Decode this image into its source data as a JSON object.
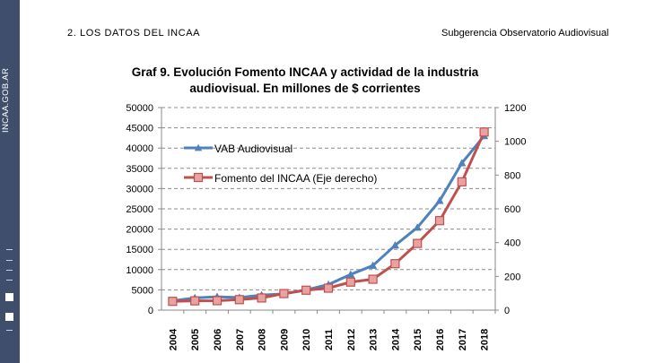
{
  "sidebar": {
    "brand": "INCAA.GOB.AR"
  },
  "header": {
    "section": "2. LOS DATOS DEL INCAA",
    "department": "Subgerencia Observatorio Audiovisual"
  },
  "colors": {
    "sidebar": "#3f4f6b",
    "vab": "#4f81bd",
    "fomento": "#c0504d"
  },
  "chart_data": {
    "type": "line",
    "title_lines": [
      "Graf 9. Evolución Fomento INCAA y actividad de la industria",
      "audiovisual. En millones de $ corrientes"
    ],
    "xlabel": "",
    "ylabel": "",
    "x": [
      "2004",
      "2005",
      "2006",
      "2007",
      "2008",
      "2009",
      "2010",
      "2011",
      "2012",
      "2013",
      "2014",
      "2015",
      "2016",
      "2017",
      "2018"
    ],
    "y_left": {
      "range": [
        0,
        50000
      ],
      "ticks": [
        "0",
        "5000",
        "10000",
        "15000",
        "20000",
        "25000",
        "30000",
        "35000",
        "40000",
        "45000",
        "50000"
      ]
    },
    "y_right": {
      "range": [
        0,
        1200
      ],
      "ticks": [
        "0",
        "200",
        "400",
        "600",
        "800",
        "1000",
        "1200"
      ]
    },
    "grid": "horizontal dashed",
    "legend_position": "top-left (inside plot)",
    "series": [
      {
        "name": "VAB Audiovisual",
        "axis": "left",
        "marker": "triangle",
        "values": [
          2300,
          3000,
          3300,
          3100,
          3700,
          4000,
          5000,
          6300,
          8800,
          11000,
          16000,
          20400,
          27000,
          36300,
          43000
        ]
      },
      {
        "name": "Fomento del INCAA (Eje derecho)",
        "axis": "right",
        "marker": "square",
        "values": [
          52,
          55,
          56,
          62,
          72,
          98,
          118,
          130,
          166,
          183,
          275,
          395,
          530,
          760,
          1055
        ]
      }
    ]
  }
}
